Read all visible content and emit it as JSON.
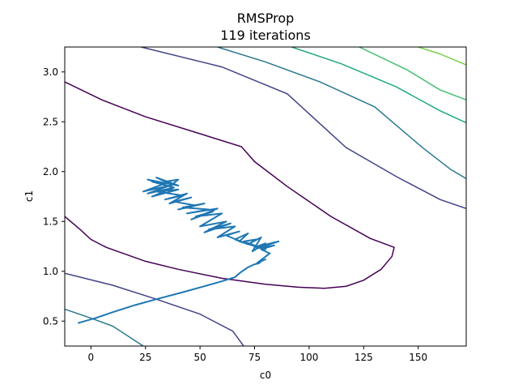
{
  "chart_data": {
    "type": "line",
    "title": "RMSProp",
    "subtitle": "119 iterations",
    "xlabel": "c0",
    "ylabel": "c1",
    "xlim": [
      -12,
      172
    ],
    "ylim": [
      0.25,
      3.25
    ],
    "x_ticks": [
      0,
      25,
      50,
      75,
      100,
      125,
      150
    ],
    "x_tick_labels": [
      "0",
      "25",
      "50",
      "75",
      "100",
      "125",
      "150"
    ],
    "y_ticks": [
      0.5,
      1.0,
      1.5,
      2.0,
      2.5,
      3.0
    ],
    "y_tick_labels": [
      "0.5",
      "1.0",
      "1.5",
      "2.0",
      "2.5",
      "3.0"
    ],
    "grid": false,
    "contours": [
      {
        "color": "#440154",
        "points": [
          [
            -12,
            2.9
          ],
          [
            5,
            2.72
          ],
          [
            25,
            2.55
          ],
          [
            50,
            2.38
          ],
          [
            69,
            2.25
          ],
          [
            75,
            2.1
          ],
          [
            90,
            1.85
          ],
          [
            110,
            1.55
          ],
          [
            128,
            1.33
          ],
          [
            139,
            1.24
          ],
          [
            138,
            1.15
          ],
          [
            133,
            1.02
          ],
          [
            125,
            0.91
          ],
          [
            117,
            0.85
          ],
          [
            107,
            0.83
          ],
          [
            95,
            0.84
          ],
          [
            80,
            0.87
          ],
          [
            60,
            0.93
          ],
          [
            40,
            1.02
          ],
          [
            25,
            1.1
          ],
          [
            7,
            1.24
          ],
          [
            0,
            1.32
          ],
          [
            -5,
            1.42
          ],
          [
            -12,
            1.55
          ]
        ]
      },
      {
        "color": "#414487",
        "points": [
          [
            23,
            3.25
          ],
          [
            60,
            3.05
          ],
          [
            90,
            2.78
          ],
          [
            117,
            2.24
          ],
          [
            140,
            1.95
          ],
          [
            160,
            1.72
          ],
          [
            172,
            1.63
          ]
        ]
      },
      {
        "color": "#414487",
        "points": [
          [
            -12,
            0.98
          ],
          [
            10,
            0.86
          ],
          [
            30,
            0.72
          ],
          [
            50,
            0.57
          ],
          [
            65,
            0.4
          ],
          [
            70,
            0.25
          ]
        ]
      },
      {
        "color": "#2a788e",
        "points": [
          [
            58,
            3.25
          ],
          [
            80,
            3.1
          ],
          [
            105,
            2.9
          ],
          [
            130,
            2.65
          ],
          [
            152,
            2.24
          ],
          [
            165,
            2.02
          ],
          [
            172,
            1.93
          ]
        ]
      },
      {
        "color": "#2a788e",
        "points": [
          [
            -12,
            0.62
          ],
          [
            0,
            0.53
          ],
          [
            10,
            0.45
          ],
          [
            24,
            0.25
          ]
        ]
      },
      {
        "color": "#22a884",
        "points": [
          [
            92,
            3.25
          ],
          [
            115,
            3.08
          ],
          [
            140,
            2.85
          ],
          [
            160,
            2.61
          ],
          [
            172,
            2.49
          ]
        ]
      },
      {
        "color": "#44bf70",
        "points": [
          [
            123,
            3.25
          ],
          [
            145,
            3.02
          ],
          [
            160,
            2.82
          ],
          [
            172,
            2.72
          ]
        ]
      },
      {
        "color": "#7ad151",
        "points": [
          [
            150,
            3.25
          ],
          [
            160,
            3.18
          ],
          [
            172,
            3.07
          ]
        ]
      }
    ],
    "series": [
      {
        "color": "#1f77b4",
        "x": [
          -6,
          2,
          10,
          20,
          30,
          42,
          52,
          60,
          66,
          68,
          70,
          72,
          75,
          77,
          78,
          80,
          76,
          82,
          78,
          84,
          76,
          86,
          75,
          80,
          74,
          78,
          72,
          76,
          70,
          80,
          68,
          72,
          66,
          72,
          62,
          68,
          58,
          66,
          54,
          64,
          52,
          62,
          50,
          60,
          48,
          56,
          46,
          58,
          44,
          54,
          42,
          52,
          40,
          48,
          38,
          46,
          36,
          44,
          34,
          42,
          30,
          40,
          28,
          38,
          26,
          36,
          24,
          34,
          28,
          38,
          26,
          40,
          30,
          36,
          34,
          40,
          36,
          38
        ],
        "y": [
          0.48,
          0.53,
          0.59,
          0.66,
          0.72,
          0.79,
          0.85,
          0.9,
          0.94,
          0.98,
          1.01,
          1.04,
          1.07,
          1.08,
          1.1,
          1.12,
          1.08,
          1.18,
          1.22,
          1.26,
          1.23,
          1.3,
          1.24,
          1.28,
          1.2,
          1.34,
          1.27,
          1.32,
          1.3,
          1.22,
          1.3,
          1.38,
          1.32,
          1.27,
          1.36,
          1.4,
          1.34,
          1.45,
          1.42,
          1.48,
          1.39,
          1.5,
          1.45,
          1.58,
          1.55,
          1.6,
          1.52,
          1.63,
          1.58,
          1.62,
          1.64,
          1.68,
          1.62,
          1.66,
          1.7,
          1.74,
          1.68,
          1.78,
          1.72,
          1.76,
          1.8,
          1.82,
          1.75,
          1.84,
          1.78,
          1.86,
          1.8,
          1.88,
          1.9,
          1.84,
          1.92,
          1.86,
          1.94,
          1.88,
          1.9,
          1.92,
          1.85,
          1.88
        ]
      }
    ]
  }
}
